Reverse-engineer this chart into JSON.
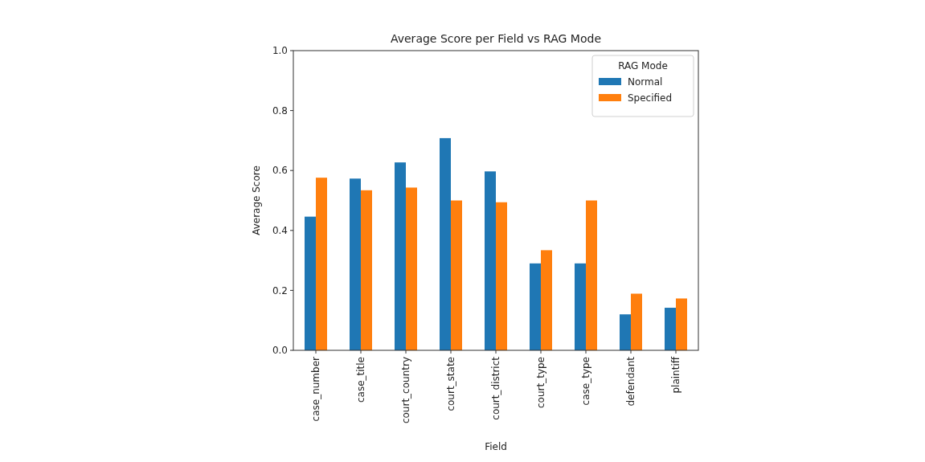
{
  "chart_data": {
    "type": "bar",
    "title": "Average Score per Field vs RAG Mode",
    "xlabel": "Field",
    "ylabel": "Average Score",
    "legend_title": "RAG Mode",
    "legend": "top right",
    "grid": false,
    "categories": [
      "case_number",
      "case_title",
      "court_country",
      "court_state",
      "court_district",
      "court_type",
      "case_type",
      "defendant",
      "plaintiff"
    ],
    "series": [
      {
        "name": "Normal",
        "color": "#1f77b4",
        "values": [
          0.446,
          0.573,
          0.627,
          0.708,
          0.597,
          0.29,
          0.29,
          0.12,
          0.142
        ]
      },
      {
        "name": "Specified",
        "color": "#ff7f0e",
        "values": [
          0.576,
          0.534,
          0.543,
          0.5,
          0.494,
          0.334,
          0.5,
          0.189,
          0.173
        ]
      }
    ],
    "ylim": [
      0,
      1
    ],
    "yticks": [
      {
        "value": 0,
        "label": "0.0"
      },
      {
        "value": 0.2,
        "label": "0.2"
      },
      {
        "value": 0.4,
        "label": "0.4"
      },
      {
        "value": 0.6,
        "label": "0.6"
      },
      {
        "value": 0.8,
        "label": "0.8"
      },
      {
        "value": 1,
        "label": "1.0"
      }
    ]
  }
}
